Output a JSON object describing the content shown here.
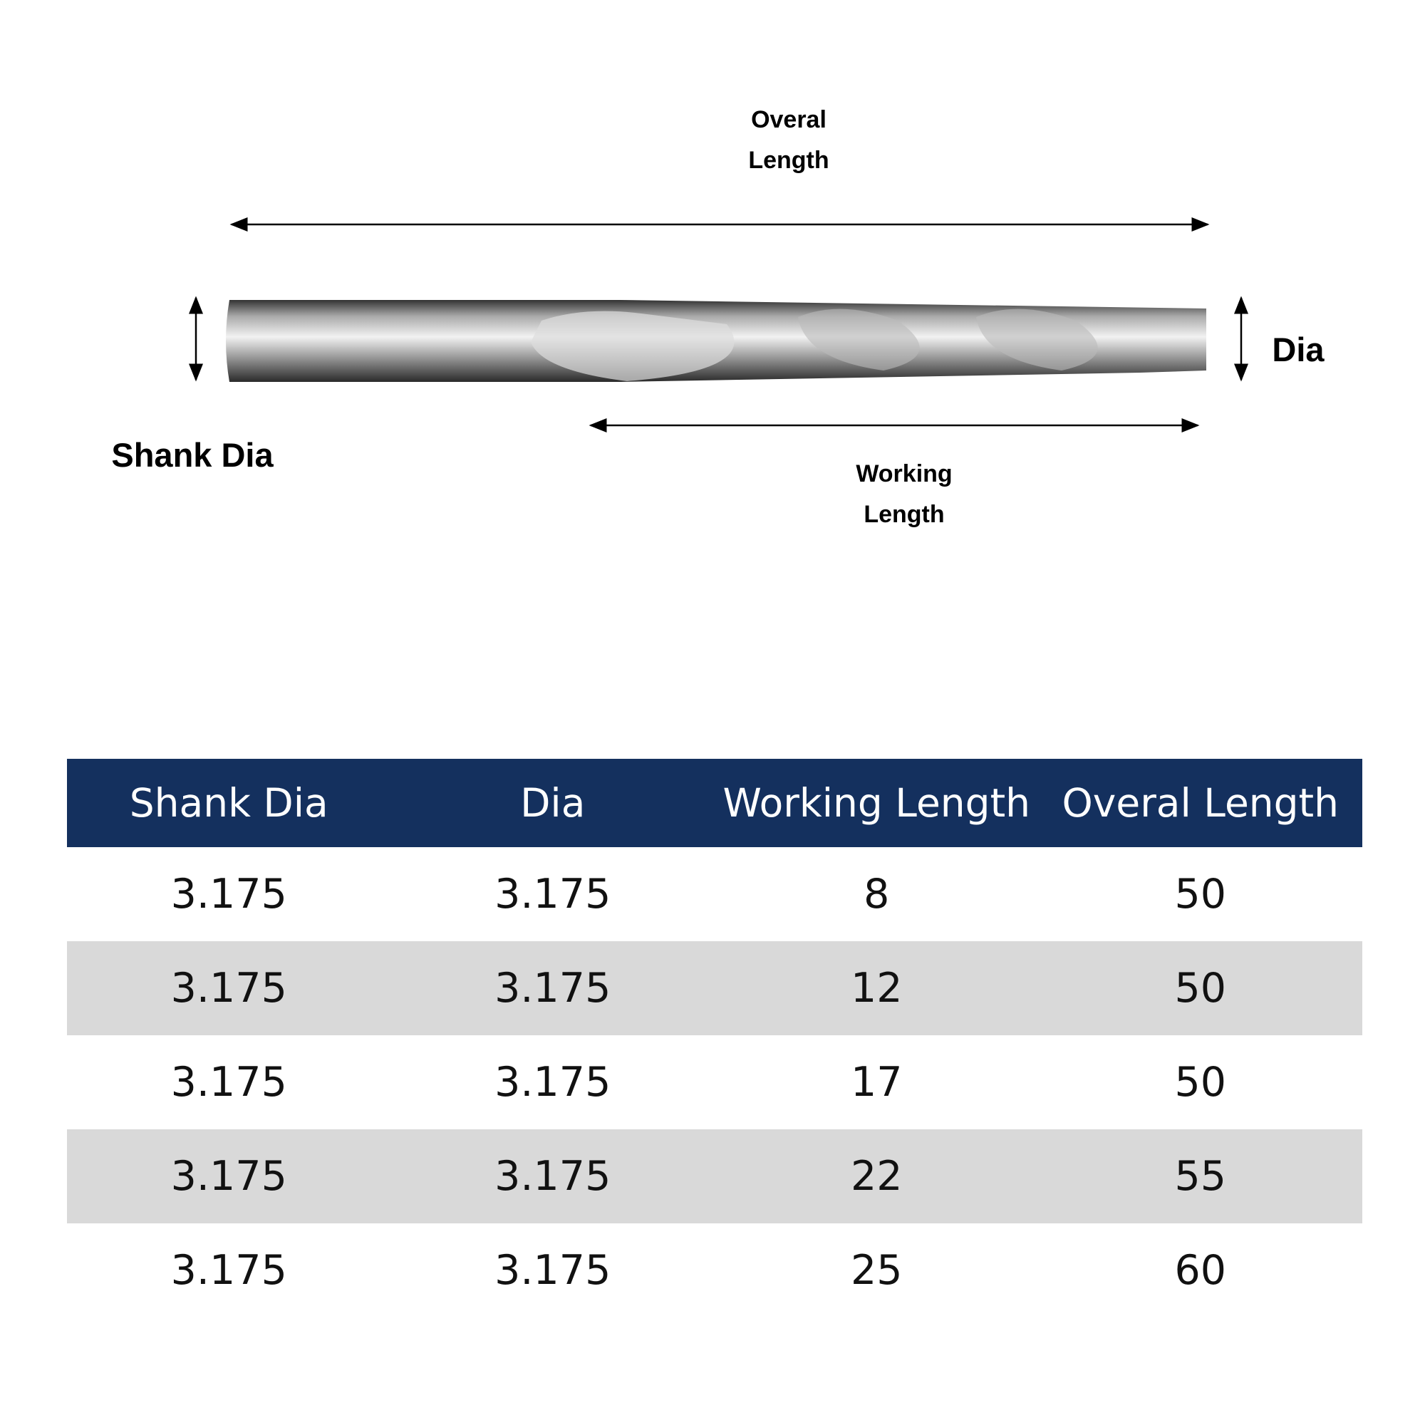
{
  "diagram": {
    "overall_length": [
      "Overal",
      "Length"
    ],
    "working_length": [
      "Working",
      "Length"
    ],
    "shank_dia": "Shank Dia",
    "dia": "Dia"
  },
  "table": {
    "header": [
      "Shank Dia",
      "Dia",
      "Working Length",
      "Overal Length"
    ],
    "rows": [
      [
        3.175,
        3.175,
        8,
        50
      ],
      [
        3.175,
        3.175,
        12,
        50
      ],
      [
        3.175,
        3.175,
        17,
        50
      ],
      [
        3.175,
        3.175,
        22,
        55
      ],
      [
        3.175,
        3.175,
        25,
        60
      ]
    ]
  }
}
